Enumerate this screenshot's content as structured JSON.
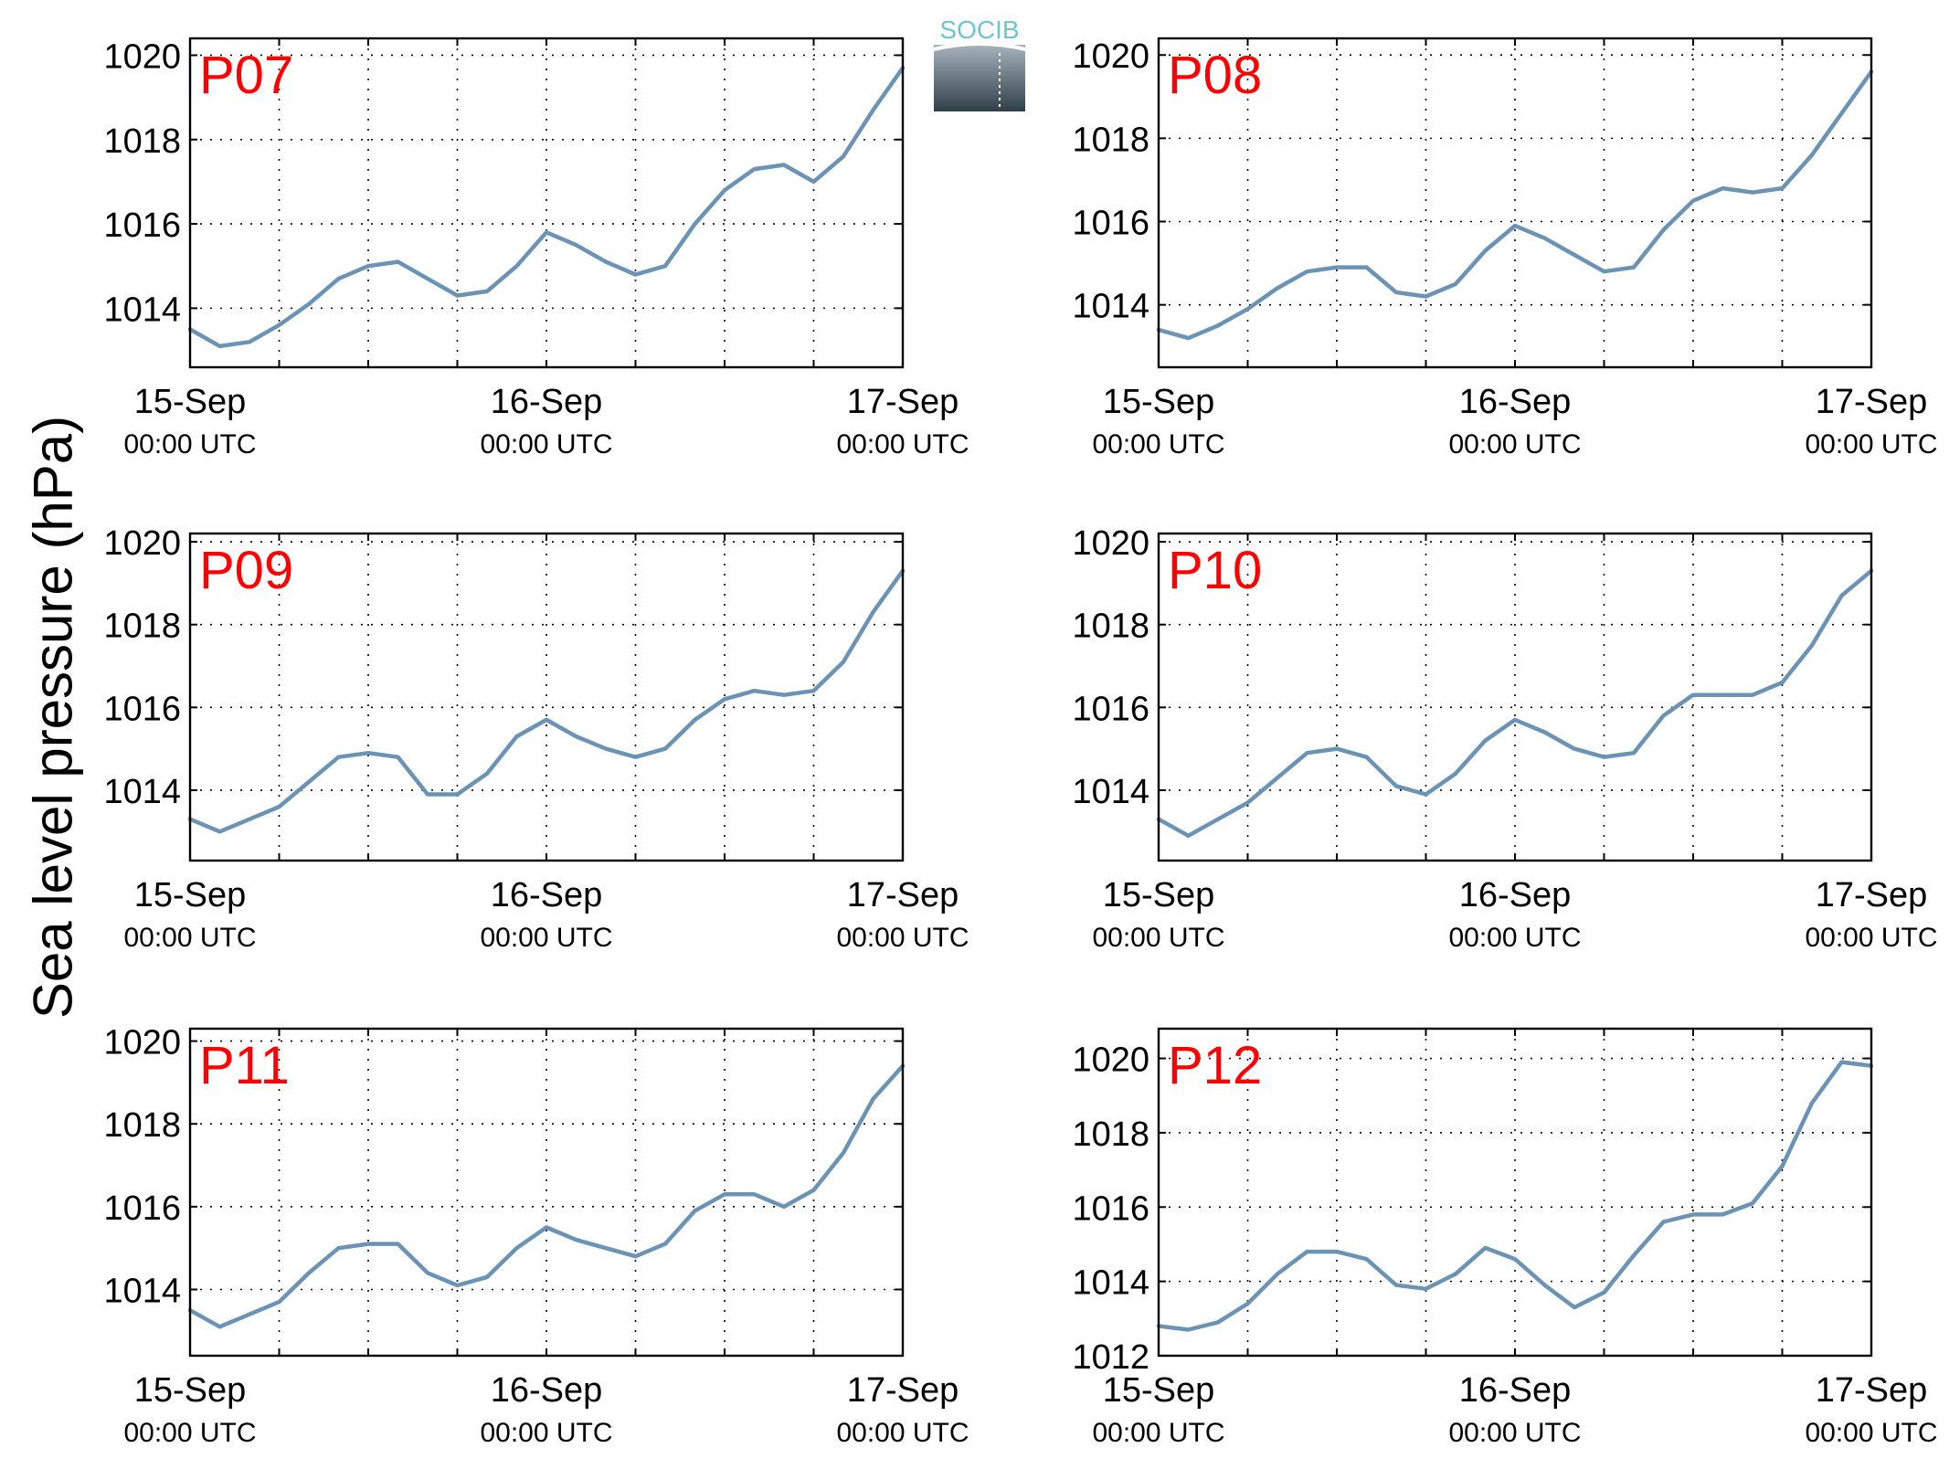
{
  "figure": {
    "ylabel": "Sea level pressure (hPa)",
    "logo_text": "SOCIB",
    "line_color": "#6a93b5",
    "station_label_color": "#ff0000"
  },
  "chart_data": [
    {
      "type": "line",
      "station": "P07",
      "x_ticks": [
        "15-Sep",
        "16-Sep",
        "17-Sep"
      ],
      "x_ticks_sub": [
        "00:00 UTC",
        "00:00 UTC",
        "00:00 UTC"
      ],
      "xlim": [
        "2015-09-15 00:00",
        "2015-09-17 00:00"
      ],
      "ylim": [
        1012.6,
        1020.4
      ],
      "y_ticks": [
        1014,
        1016,
        1018,
        1020
      ],
      "grid": true,
      "series": [
        {
          "x": [
            "2015-09-15 00:00",
            "2015-09-15 02:00",
            "2015-09-15 04:00",
            "2015-09-15 06:00",
            "2015-09-15 08:00",
            "2015-09-15 10:00",
            "2015-09-15 12:00",
            "2015-09-15 14:00",
            "2015-09-15 16:00",
            "2015-09-15 18:00",
            "2015-09-15 20:00",
            "2015-09-15 22:00",
            "2015-09-16 00:00",
            "2015-09-16 02:00",
            "2015-09-16 04:00",
            "2015-09-16 06:00",
            "2015-09-16 08:00",
            "2015-09-16 10:00",
            "2015-09-16 12:00",
            "2015-09-16 14:00",
            "2015-09-16 16:00",
            "2015-09-16 18:00",
            "2015-09-16 20:00",
            "2015-09-16 22:00",
            "2015-09-17 00:00"
          ],
          "y": [
            1013.5,
            1013.1,
            1013.2,
            1013.6,
            1014.1,
            1014.7,
            1015.0,
            1015.1,
            1014.7,
            1014.3,
            1014.4,
            1015.0,
            1015.8,
            1015.5,
            1015.1,
            1014.8,
            1015.0,
            1016.0,
            1016.8,
            1017.3,
            1017.4,
            1017.0,
            1017.6,
            1018.7,
            1019.7
          ]
        }
      ]
    },
    {
      "type": "line",
      "station": "P08",
      "x_ticks": [
        "15-Sep",
        "16-Sep",
        "17-Sep"
      ],
      "x_ticks_sub": [
        "00:00 UTC",
        "00:00 UTC",
        "00:00 UTC"
      ],
      "xlim": [
        "2015-09-15 00:00",
        "2015-09-17 00:00"
      ],
      "ylim": [
        1012.5,
        1020.4
      ],
      "y_ticks": [
        1014,
        1016,
        1018,
        1020
      ],
      "grid": true,
      "series": [
        {
          "x": [
            "2015-09-15 00:00",
            "2015-09-15 02:00",
            "2015-09-15 04:00",
            "2015-09-15 06:00",
            "2015-09-15 08:00",
            "2015-09-15 10:00",
            "2015-09-15 12:00",
            "2015-09-15 14:00",
            "2015-09-15 16:00",
            "2015-09-15 18:00",
            "2015-09-15 20:00",
            "2015-09-15 22:00",
            "2015-09-16 00:00",
            "2015-09-16 02:00",
            "2015-09-16 04:00",
            "2015-09-16 06:00",
            "2015-09-16 08:00",
            "2015-09-16 10:00",
            "2015-09-16 12:00",
            "2015-09-16 14:00",
            "2015-09-16 16:00",
            "2015-09-16 18:00",
            "2015-09-16 20:00",
            "2015-09-16 22:00",
            "2015-09-17 00:00"
          ],
          "y": [
            1013.4,
            1013.2,
            1013.5,
            1013.9,
            1014.4,
            1014.8,
            1014.9,
            1014.9,
            1014.3,
            1014.2,
            1014.5,
            1015.3,
            1015.9,
            1015.6,
            1015.2,
            1014.8,
            1014.9,
            1015.8,
            1016.5,
            1016.8,
            1016.7,
            1016.8,
            1017.6,
            1018.6,
            1019.6
          ]
        }
      ]
    },
    {
      "type": "line",
      "station": "P09",
      "x_ticks": [
        "15-Sep",
        "16-Sep",
        "17-Sep"
      ],
      "x_ticks_sub": [
        "00:00 UTC",
        "00:00 UTC",
        "00:00 UTC"
      ],
      "xlim": [
        "2015-09-15 00:00",
        "2015-09-17 00:00"
      ],
      "ylim": [
        1012.3,
        1020.2
      ],
      "y_ticks": [
        1014,
        1016,
        1018,
        1020
      ],
      "grid": true,
      "series": [
        {
          "x": [
            "2015-09-15 00:00",
            "2015-09-15 02:00",
            "2015-09-15 04:00",
            "2015-09-15 06:00",
            "2015-09-15 08:00",
            "2015-09-15 10:00",
            "2015-09-15 12:00",
            "2015-09-15 14:00",
            "2015-09-15 16:00",
            "2015-09-15 18:00",
            "2015-09-15 20:00",
            "2015-09-15 22:00",
            "2015-09-16 00:00",
            "2015-09-16 02:00",
            "2015-09-16 04:00",
            "2015-09-16 06:00",
            "2015-09-16 08:00",
            "2015-09-16 10:00",
            "2015-09-16 12:00",
            "2015-09-16 14:00",
            "2015-09-16 16:00",
            "2015-09-16 18:00",
            "2015-09-16 20:00",
            "2015-09-16 22:00",
            "2015-09-17 00:00"
          ],
          "y": [
            1013.3,
            1013.0,
            1013.3,
            1013.6,
            1014.2,
            1014.8,
            1014.9,
            1014.8,
            1013.9,
            1013.9,
            1014.4,
            1015.3,
            1015.7,
            1015.3,
            1015.0,
            1014.8,
            1015.0,
            1015.7,
            1016.2,
            1016.4,
            1016.3,
            1016.4,
            1017.1,
            1018.3,
            1019.3
          ]
        }
      ]
    },
    {
      "type": "line",
      "station": "P10",
      "x_ticks": [
        "15-Sep",
        "16-Sep",
        "17-Sep"
      ],
      "x_ticks_sub": [
        "00:00 UTC",
        "00:00 UTC",
        "00:00 UTC"
      ],
      "xlim": [
        "2015-09-15 00:00",
        "2015-09-17 00:00"
      ],
      "ylim": [
        1012.3,
        1020.2
      ],
      "y_ticks": [
        1014,
        1016,
        1018,
        1020
      ],
      "grid": true,
      "series": [
        {
          "x": [
            "2015-09-15 00:00",
            "2015-09-15 02:00",
            "2015-09-15 04:00",
            "2015-09-15 06:00",
            "2015-09-15 08:00",
            "2015-09-15 10:00",
            "2015-09-15 12:00",
            "2015-09-15 14:00",
            "2015-09-15 16:00",
            "2015-09-15 18:00",
            "2015-09-15 20:00",
            "2015-09-15 22:00",
            "2015-09-16 00:00",
            "2015-09-16 02:00",
            "2015-09-16 04:00",
            "2015-09-16 06:00",
            "2015-09-16 08:00",
            "2015-09-16 10:00",
            "2015-09-16 12:00",
            "2015-09-16 14:00",
            "2015-09-16 16:00",
            "2015-09-16 18:00",
            "2015-09-16 20:00",
            "2015-09-16 22:00",
            "2015-09-17 00:00"
          ],
          "y": [
            1013.3,
            1012.9,
            1013.3,
            1013.7,
            1014.3,
            1014.9,
            1015.0,
            1014.8,
            1014.1,
            1013.9,
            1014.4,
            1015.2,
            1015.7,
            1015.4,
            1015.0,
            1014.8,
            1014.9,
            1015.8,
            1016.3,
            1016.3,
            1016.3,
            1016.6,
            1017.5,
            1018.7,
            1019.3
          ]
        }
      ]
    },
    {
      "type": "line",
      "station": "P11",
      "x_ticks": [
        "15-Sep",
        "16-Sep",
        "17-Sep"
      ],
      "x_ticks_sub": [
        "00:00 UTC",
        "00:00 UTC",
        "00:00 UTC"
      ],
      "xlim": [
        "2015-09-15 00:00",
        "2015-09-17 00:00"
      ],
      "ylim": [
        1012.4,
        1020.3
      ],
      "y_ticks": [
        1014,
        1016,
        1018,
        1020
      ],
      "grid": true,
      "series": [
        {
          "x": [
            "2015-09-15 00:00",
            "2015-09-15 02:00",
            "2015-09-15 04:00",
            "2015-09-15 06:00",
            "2015-09-15 08:00",
            "2015-09-15 10:00",
            "2015-09-15 12:00",
            "2015-09-15 14:00",
            "2015-09-15 16:00",
            "2015-09-15 18:00",
            "2015-09-15 20:00",
            "2015-09-15 22:00",
            "2015-09-16 00:00",
            "2015-09-16 02:00",
            "2015-09-16 04:00",
            "2015-09-16 06:00",
            "2015-09-16 08:00",
            "2015-09-16 10:00",
            "2015-09-16 12:00",
            "2015-09-16 14:00",
            "2015-09-16 16:00",
            "2015-09-16 18:00",
            "2015-09-16 20:00",
            "2015-09-16 22:00",
            "2015-09-17 00:00"
          ],
          "y": [
            1013.5,
            1013.1,
            1013.4,
            1013.7,
            1014.4,
            1015.0,
            1015.1,
            1015.1,
            1014.4,
            1014.1,
            1014.3,
            1015.0,
            1015.5,
            1015.2,
            1015.0,
            1014.8,
            1015.1,
            1015.9,
            1016.3,
            1016.3,
            1016.0,
            1016.4,
            1017.3,
            1018.6,
            1019.4
          ]
        }
      ]
    },
    {
      "type": "line",
      "station": "P12",
      "x_ticks": [
        "15-Sep",
        "16-Sep",
        "17-Sep"
      ],
      "x_ticks_sub": [
        "00:00 UTC",
        "00:00 UTC",
        "00:00 UTC"
      ],
      "xlim": [
        "2015-09-15 00:00",
        "2015-09-17 00:00"
      ],
      "ylim": [
        1012.0,
        1020.8
      ],
      "y_ticks": [
        1012,
        1014,
        1016,
        1018,
        1020
      ],
      "grid": true,
      "series": [
        {
          "x": [
            "2015-09-15 00:00",
            "2015-09-15 02:00",
            "2015-09-15 04:00",
            "2015-09-15 06:00",
            "2015-09-15 08:00",
            "2015-09-15 10:00",
            "2015-09-15 12:00",
            "2015-09-15 14:00",
            "2015-09-15 16:00",
            "2015-09-15 18:00",
            "2015-09-15 20:00",
            "2015-09-15 22:00",
            "2015-09-16 00:00",
            "2015-09-16 02:00",
            "2015-09-16 04:00",
            "2015-09-16 06:00",
            "2015-09-16 08:00",
            "2015-09-16 10:00",
            "2015-09-16 12:00",
            "2015-09-16 14:00",
            "2015-09-16 16:00",
            "2015-09-16 18:00",
            "2015-09-16 20:00",
            "2015-09-16 22:00",
            "2015-09-17 00:00"
          ],
          "y": [
            1012.8,
            1012.7,
            1012.9,
            1013.4,
            1014.2,
            1014.8,
            1014.8,
            1014.6,
            1013.9,
            1013.8,
            1014.2,
            1014.9,
            1014.6,
            1013.9,
            1013.3,
            1013.7,
            1014.7,
            1015.6,
            1015.8,
            1015.8,
            1016.1,
            1017.1,
            1018.8,
            1019.9,
            1019.8
          ]
        }
      ]
    }
  ]
}
